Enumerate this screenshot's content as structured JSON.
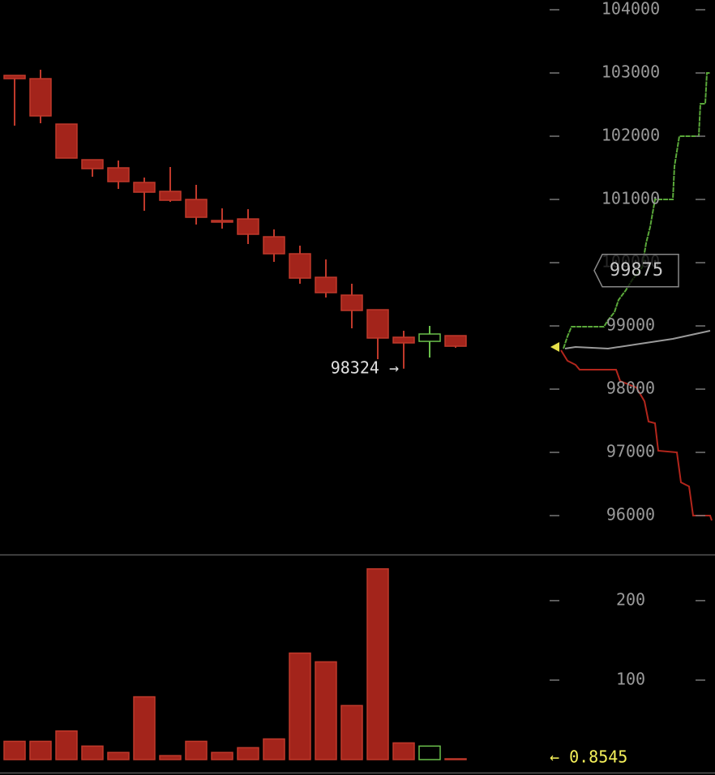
{
  "chart_data": [
    {
      "type": "candlestick",
      "up_color": "#6abf4b",
      "down_color": "#a3241b",
      "open": [
        102962,
        102910,
        102192,
        101628,
        101500,
        101269,
        101128,
        101000,
        100667,
        100692,
        100410,
        100141,
        99769,
        99487,
        99256,
        98821,
        98756,
        98846
      ],
      "high": [
        102962,
        103051,
        102192,
        101628,
        101615,
        101346,
        101513,
        101231,
        100859,
        100846,
        100526,
        100269,
        100051,
        99667,
        99256,
        98923,
        99000,
        98846
      ],
      "low": [
        102167,
        102205,
        101654,
        101359,
        101167,
        100821,
        100962,
        100603,
        100538,
        100295,
        100013,
        99667,
        99449,
        98962,
        98474,
        98324,
        98500,
        98654
      ],
      "close": [
        102910,
        102321,
        101654,
        101487,
        101282,
        101115,
        100987,
        100718,
        100667,
        100449,
        100141,
        99756,
        99526,
        99244,
        98808,
        98731,
        98872,
        98679
      ],
      "ylim": [
        95385,
        104154
      ],
      "yticks": [
        96000,
        97000,
        98000,
        99000,
        100000,
        101000,
        102000,
        103000,
        104000
      ],
      "annotations": [
        {
          "label": "98324 →",
          "value": 98324
        }
      ],
      "price_tag": {
        "label": "99875",
        "value": 99875
      }
    },
    {
      "type": "bar",
      "values": [
        23,
        23,
        36,
        17,
        9,
        79,
        5,
        23,
        9,
        15,
        26,
        134,
        123,
        68,
        240,
        21,
        17,
        0.8545
      ],
      "ylim": [
        0,
        256
      ],
      "yticks": [
        100,
        200
      ],
      "annotations": [
        {
          "label": "← 0.8545",
          "value": 0.8545
        }
      ]
    }
  ]
}
